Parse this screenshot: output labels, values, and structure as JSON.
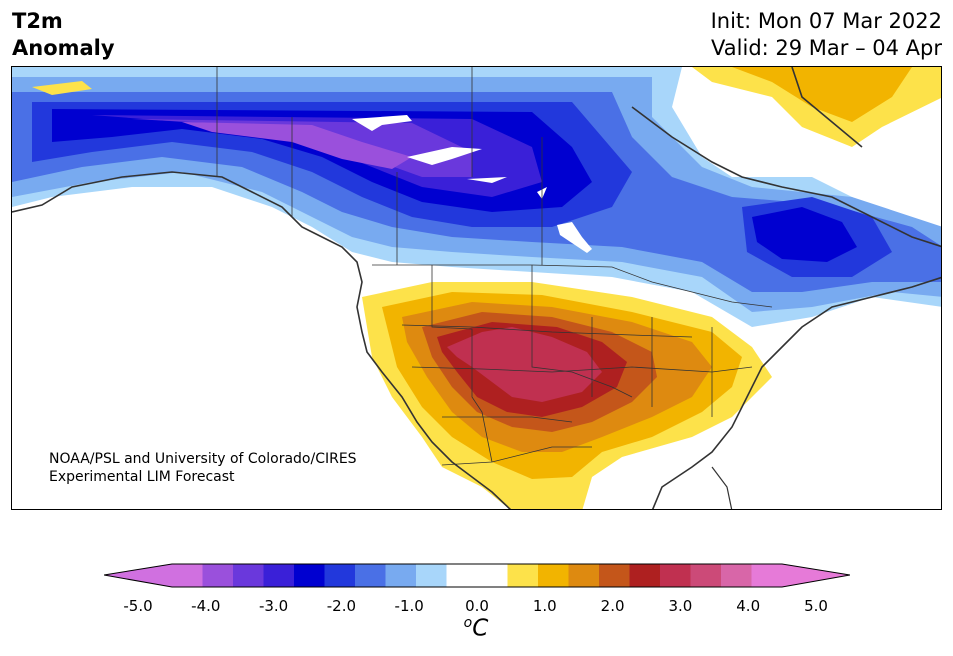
{
  "title": {
    "line1": "T2m",
    "line2": "Anomaly"
  },
  "init": {
    "line1": "Init: Mon 07 Mar 2022",
    "line2": "Valid: 29 Mar – 04 Apr"
  },
  "credit": {
    "line1": "NOAA/PSL and University of Colorado/CIRES",
    "line2": "Experimental LIM Forecast"
  },
  "colorbar": {
    "unit_base": "C",
    "unit_sup": "o",
    "ticks": [
      "-5.0",
      "-4.0",
      "-3.0",
      "-2.0",
      "-1.0",
      "0.0",
      "1.0",
      "2.0",
      "3.0",
      "4.0",
      "5.0"
    ],
    "colors": [
      "#d070e0",
      "#9a50dc",
      "#6a38dc",
      "#3a20d8",
      "#0000d0",
      "#2238dc",
      "#4a70e6",
      "#78aaf0",
      "#a8d6fa",
      "#ffffff",
      "#ffffff",
      "#fde24a",
      "#f2b400",
      "#de8a10",
      "#c4561a",
      "#ae2020",
      "#c03050",
      "#cc4a78",
      "#d866a8",
      "#e67ad8"
    ],
    "under_color": "#d070e0",
    "over_color": "#e67ad8"
  },
  "colors": {
    "cold_far": "#a8d6fa",
    "cold_mid": "#78aaf0",
    "cold_1": "#4a70e6",
    "cold_2": "#2238dc",
    "cold_3": "#0000d0",
    "cold_4": "#3a20d8",
    "cold_5": "#6a38dc",
    "cold_6": "#9a50dc",
    "warm_1": "#fde24a",
    "warm_2": "#f2b400",
    "warm_3": "#de8a10",
    "warm_4": "#c4561a",
    "warm_5": "#ae2020",
    "warm_6": "#c03050",
    "coast": "#333333"
  }
}
